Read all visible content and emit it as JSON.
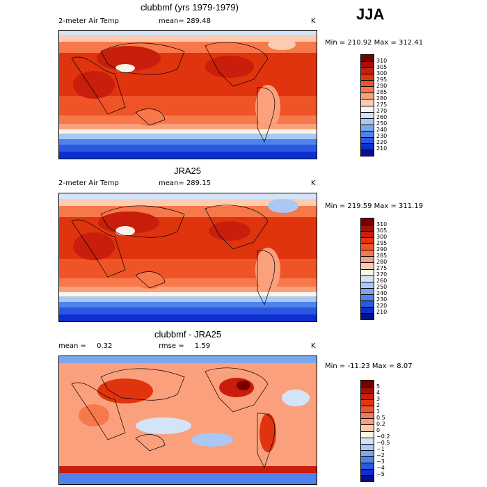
{
  "season": "JJA",
  "units": "K",
  "panels": [
    {
      "id": "model",
      "title": "clubbmf (yrs 1979-1979)",
      "variable": "2-meter Air Temp",
      "stat_label": "mean=",
      "stat_value": "289.48",
      "minmax": "Min = 210.92 Max = 312.41",
      "colorbar": {
        "ticks": [
          "310",
          "305",
          "300",
          "295",
          "290",
          "285",
          "280",
          "275",
          "270",
          "260",
          "250",
          "240",
          "230",
          "220",
          "210"
        ],
        "colors": [
          "#7a0000",
          "#a50f06",
          "#c81e0b",
          "#e0340f",
          "#ef5428",
          "#f7784a",
          "#fba07d",
          "#fdcbb0",
          "#fdf3e8",
          "#d4e4f8",
          "#a9c8f3",
          "#7aa8ef",
          "#4f82ea",
          "#2a58e0",
          "#0d2fd0",
          "#02118a"
        ]
      }
    },
    {
      "id": "obs",
      "title": "JRA25",
      "variable": "2-meter Air Temp",
      "stat_label": "mean=",
      "stat_value": "289.15",
      "minmax": "Min = 219.59 Max = 311.19",
      "colorbar": {
        "ticks": [
          "310",
          "305",
          "300",
          "295",
          "290",
          "285",
          "280",
          "275",
          "270",
          "260",
          "250",
          "240",
          "230",
          "220",
          "210"
        ],
        "colors": [
          "#7a0000",
          "#a50f06",
          "#c81e0b",
          "#e0340f",
          "#ef5428",
          "#f7784a",
          "#fba07d",
          "#fdcbb0",
          "#fdf3e8",
          "#d4e4f8",
          "#a9c8f3",
          "#7aa8ef",
          "#4f82ea",
          "#2a58e0",
          "#0d2fd0",
          "#02118a"
        ]
      }
    },
    {
      "id": "diff",
      "title": "clubbmf - JRA25",
      "stat_label": "mean =",
      "stat_value": "0.32",
      "stat2_label": "rmse =",
      "stat2_value": "1.59",
      "minmax": "Min = -11.23 Max =   8.07",
      "colorbar": {
        "ticks": [
          "5",
          "4",
          "3",
          "2",
          "1",
          "0.5",
          "0.2",
          "0",
          "−0.2",
          "−0.5",
          "−1",
          "−2",
          "−3",
          "−4",
          "−5"
        ],
        "colors": [
          "#7a0000",
          "#a50f06",
          "#c81e0b",
          "#e0340f",
          "#ef5428",
          "#f7784a",
          "#fba07d",
          "#fdcbb0",
          "#fdf3e8",
          "#d4e4f8",
          "#a9c8f3",
          "#7aa8ef",
          "#4f82ea",
          "#2a58e0",
          "#0d2fd0",
          "#02118a"
        ]
      }
    }
  ],
  "chart_data": {
    "type": "heatmap",
    "title": "JJA",
    "description_units": "K",
    "maps": [
      {
        "title": "clubbmf (yrs 1979-1979)",
        "variable": "2-meter Air Temp",
        "mean": 289.48,
        "min": 210.92,
        "max": 312.41,
        "levels": [
          210,
          220,
          230,
          240,
          250,
          260,
          270,
          275,
          280,
          285,
          290,
          295,
          300,
          305,
          310
        ]
      },
      {
        "title": "JRA25",
        "variable": "2-meter Air Temp",
        "mean": 289.15,
        "min": 219.59,
        "max": 311.19,
        "levels": [
          210,
          220,
          230,
          240,
          250,
          260,
          270,
          275,
          280,
          285,
          290,
          295,
          300,
          305,
          310
        ]
      },
      {
        "title": "clubbmf - JRA25",
        "mean": 0.32,
        "rmse": 1.59,
        "min": -11.23,
        "max": 8.07,
        "levels": [
          -5,
          -4,
          -3,
          -2,
          -1,
          -0.5,
          -0.2,
          0,
          0.2,
          0.5,
          1,
          2,
          3,
          4,
          5
        ]
      }
    ]
  }
}
